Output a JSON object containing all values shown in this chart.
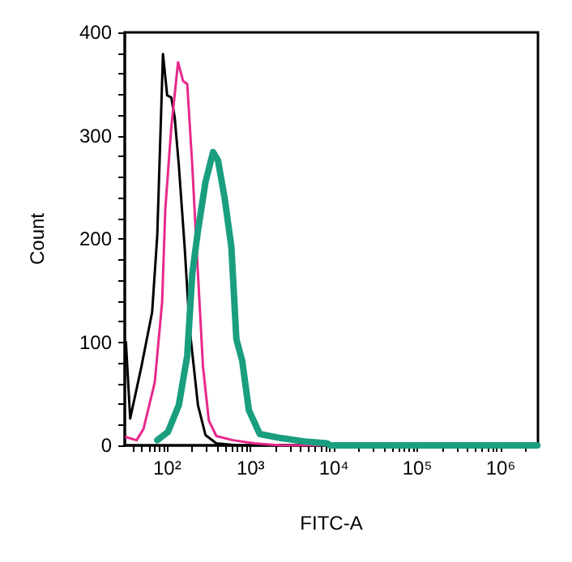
{
  "chart_data": {
    "type": "line",
    "xlabel": "FITC-A",
    "ylabel": "Count",
    "log": "x",
    "grid": false,
    "marker": "none",
    "line_style": "solid",
    "xlim": [
      31,
      2800000
    ],
    "ylim": [
      0,
      400
    ],
    "xticks": [
      {
        "value": 40,
        "label": null
      },
      {
        "value": 50,
        "label": null
      },
      {
        "value": 60,
        "label": null
      },
      {
        "value": 70,
        "label": null
      },
      {
        "value": 80,
        "label": null
      },
      {
        "value": 90,
        "label": null
      },
      {
        "value": 100,
        "label": "10²"
      },
      {
        "value": 200,
        "label": null
      },
      {
        "value": 300,
        "label": null
      },
      {
        "value": 400,
        "label": null
      },
      {
        "value": 500,
        "label": null
      },
      {
        "value": 600,
        "label": null
      },
      {
        "value": 700,
        "label": null
      },
      {
        "value": 800,
        "label": null
      },
      {
        "value": 900,
        "label": null
      },
      {
        "value": 1000,
        "label": "10³"
      },
      {
        "value": 2000,
        "label": null
      },
      {
        "value": 3000,
        "label": null
      },
      {
        "value": 4000,
        "label": null
      },
      {
        "value": 5000,
        "label": null
      },
      {
        "value": 6000,
        "label": null
      },
      {
        "value": 7000,
        "label": null
      },
      {
        "value": 8000,
        "label": null
      },
      {
        "value": 9000,
        "label": null
      },
      {
        "value": 10000,
        "label": "10⁴"
      },
      {
        "value": 20000,
        "label": null
      },
      {
        "value": 30000,
        "label": null
      },
      {
        "value": 40000,
        "label": null
      },
      {
        "value": 50000,
        "label": null
      },
      {
        "value": 60000,
        "label": null
      },
      {
        "value": 70000,
        "label": null
      },
      {
        "value": 80000,
        "label": null
      },
      {
        "value": 90000,
        "label": null
      },
      {
        "value": 100000,
        "label": "10⁵"
      },
      {
        "value": 200000,
        "label": null
      },
      {
        "value": 300000,
        "label": null
      },
      {
        "value": 400000,
        "label": null
      },
      {
        "value": 500000,
        "label": null
      },
      {
        "value": 600000,
        "label": null
      },
      {
        "value": 700000,
        "label": null
      },
      {
        "value": 800000,
        "label": null
      },
      {
        "value": 900000,
        "label": null
      },
      {
        "value": 1000000,
        "label": "10⁶"
      },
      {
        "value": 2000000,
        "label": null
      }
    ],
    "yticks": [
      0,
      {
        "value": 20,
        "label": null
      },
      {
        "value": 40,
        "label": null
      },
      {
        "value": 60,
        "label": null
      },
      {
        "value": 80,
        "label": null
      },
      100,
      {
        "value": 120,
        "label": null
      },
      {
        "value": 140,
        "label": null
      },
      {
        "value": 160,
        "label": null
      },
      {
        "value": 180,
        "label": null
      },
      200,
      {
        "value": 220,
        "label": null
      },
      {
        "value": 240,
        "label": null
      },
      {
        "value": 260,
        "label": null
      },
      {
        "value": 280,
        "label": null
      },
      300,
      {
        "value": 320,
        "label": null
      },
      {
        "value": 340,
        "label": null
      },
      {
        "value": 360,
        "label": null
      },
      {
        "value": 380,
        "label": null
      },
      400
    ],
    "series": [
      {
        "color": "#000000",
        "x": [
          32,
          36,
          49,
          66,
          76,
          89,
          100,
          112,
          123,
          138,
          162,
          186,
          234,
          288,
          389,
          708,
          2750000
        ],
        "values": [
          100,
          26,
          76,
          129,
          203,
          379,
          339,
          337,
          318,
          271,
          192,
          113,
          39,
          10,
          2,
          0,
          0
        ]
      },
      {
        "color": "#e8288c",
        "x": [
          32,
          43,
          52,
          71,
          87,
          95,
          112,
          135,
          155,
          174,
          200,
          234,
          269,
          316,
          389,
          617,
          1120,
          2340,
          2750000
        ],
        "values": [
          8,
          5,
          16,
          61,
          139,
          229,
          308,
          371,
          353,
          350,
          271,
          166,
          76,
          24,
          9,
          5,
          2,
          0,
          0
        ]
      },
      {
        "color": "#1a9e80",
        "x": [
          76,
          102,
          138,
          174,
          200,
          234,
          288,
          355,
          407,
          490,
          589,
          676,
          794,
          955,
          1290,
          2340,
          4270,
          8300,
          9000,
          2750000
        ],
        "values": [
          5,
          13,
          39,
          87,
          166,
          208,
          255,
          284,
          276,
          239,
          192,
          103,
          82,
          34,
          11,
          7,
          4,
          2,
          0,
          0
        ]
      }
    ]
  }
}
